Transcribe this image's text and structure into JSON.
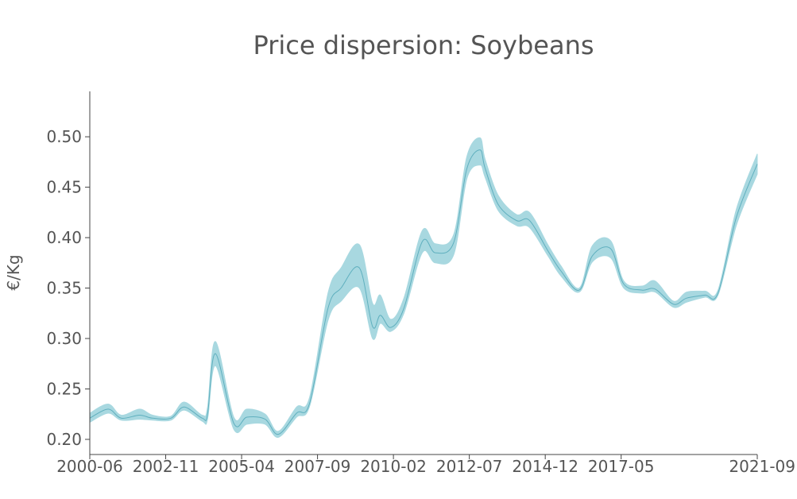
{
  "chart_data": {
    "type": "area",
    "title": "Price dispersion: Soybeans",
    "xlabel": "",
    "ylabel": "€/Kg",
    "xlim": [
      "2000-06",
      "2021-09"
    ],
    "ylim": [
      0.185,
      0.545
    ],
    "x_ticks": [
      "2000-06",
      "2002-11",
      "2005-04",
      "2007-09",
      "2010-02",
      "2012-07",
      "2014-12",
      "2017-05",
      "2021-09"
    ],
    "y_ticks": [
      "0.20",
      "0.25",
      "0.30",
      "0.35",
      "0.40",
      "0.45",
      "0.50"
    ],
    "grid": false,
    "colors": {
      "band": "#A8D8E0",
      "line": "#5FAFBE",
      "text": "#555555",
      "axis": "#444444"
    },
    "series": [
      {
        "x": [
          "2000-06",
          "2001-01",
          "2001-06",
          "2002-01",
          "2002-06",
          "2003-01",
          "2003-06",
          "2004-01",
          "2004-03",
          "2004-06",
          "2005-01",
          "2005-06",
          "2006-01",
          "2006-06",
          "2007-01",
          "2007-06",
          "2008-01",
          "2008-06",
          "2009-01",
          "2009-06",
          "2009-09",
          "2010-01",
          "2010-06",
          "2011-01",
          "2011-06",
          "2012-01",
          "2012-06",
          "2012-11",
          "2013-01",
          "2013-06",
          "2014-01",
          "2014-06",
          "2015-01",
          "2015-06",
          "2016-01",
          "2016-06",
          "2017-01",
          "2017-06",
          "2018-01",
          "2018-06",
          "2019-01",
          "2019-06",
          "2020-01",
          "2020-06",
          "2021-01",
          "2021-09"
        ],
        "y": [
          0.221,
          0.23,
          0.221,
          0.224,
          0.221,
          0.221,
          0.232,
          0.221,
          0.225,
          0.285,
          0.216,
          0.222,
          0.22,
          0.205,
          0.226,
          0.236,
          0.33,
          0.35,
          0.37,
          0.312,
          0.323,
          0.311,
          0.33,
          0.396,
          0.385,
          0.395,
          0.468,
          0.487,
          0.469,
          0.433,
          0.417,
          0.417,
          0.387,
          0.367,
          0.348,
          0.382,
          0.389,
          0.354,
          0.348,
          0.349,
          0.334,
          0.34,
          0.343,
          0.345,
          0.42,
          0.473
        ],
        "y_low": [
          0.217,
          0.226,
          0.219,
          0.22,
          0.219,
          0.219,
          0.229,
          0.218,
          0.22,
          0.273,
          0.21,
          0.215,
          0.215,
          0.202,
          0.222,
          0.233,
          0.318,
          0.337,
          0.35,
          0.3,
          0.315,
          0.307,
          0.325,
          0.385,
          0.375,
          0.383,
          0.458,
          0.472,
          0.46,
          0.427,
          0.412,
          0.41,
          0.382,
          0.362,
          0.346,
          0.376,
          0.38,
          0.35,
          0.345,
          0.346,
          0.331,
          0.336,
          0.341,
          0.343,
          0.412,
          0.463
        ],
        "y_high": [
          0.226,
          0.235,
          0.224,
          0.23,
          0.224,
          0.223,
          0.237,
          0.224,
          0.232,
          0.297,
          0.222,
          0.23,
          0.225,
          0.208,
          0.232,
          0.242,
          0.345,
          0.37,
          0.393,
          0.335,
          0.343,
          0.319,
          0.34,
          0.407,
          0.394,
          0.403,
          0.48,
          0.499,
          0.478,
          0.442,
          0.423,
          0.425,
          0.393,
          0.372,
          0.35,
          0.392,
          0.397,
          0.357,
          0.352,
          0.357,
          0.337,
          0.346,
          0.347,
          0.348,
          0.428,
          0.483
        ]
      }
    ]
  }
}
